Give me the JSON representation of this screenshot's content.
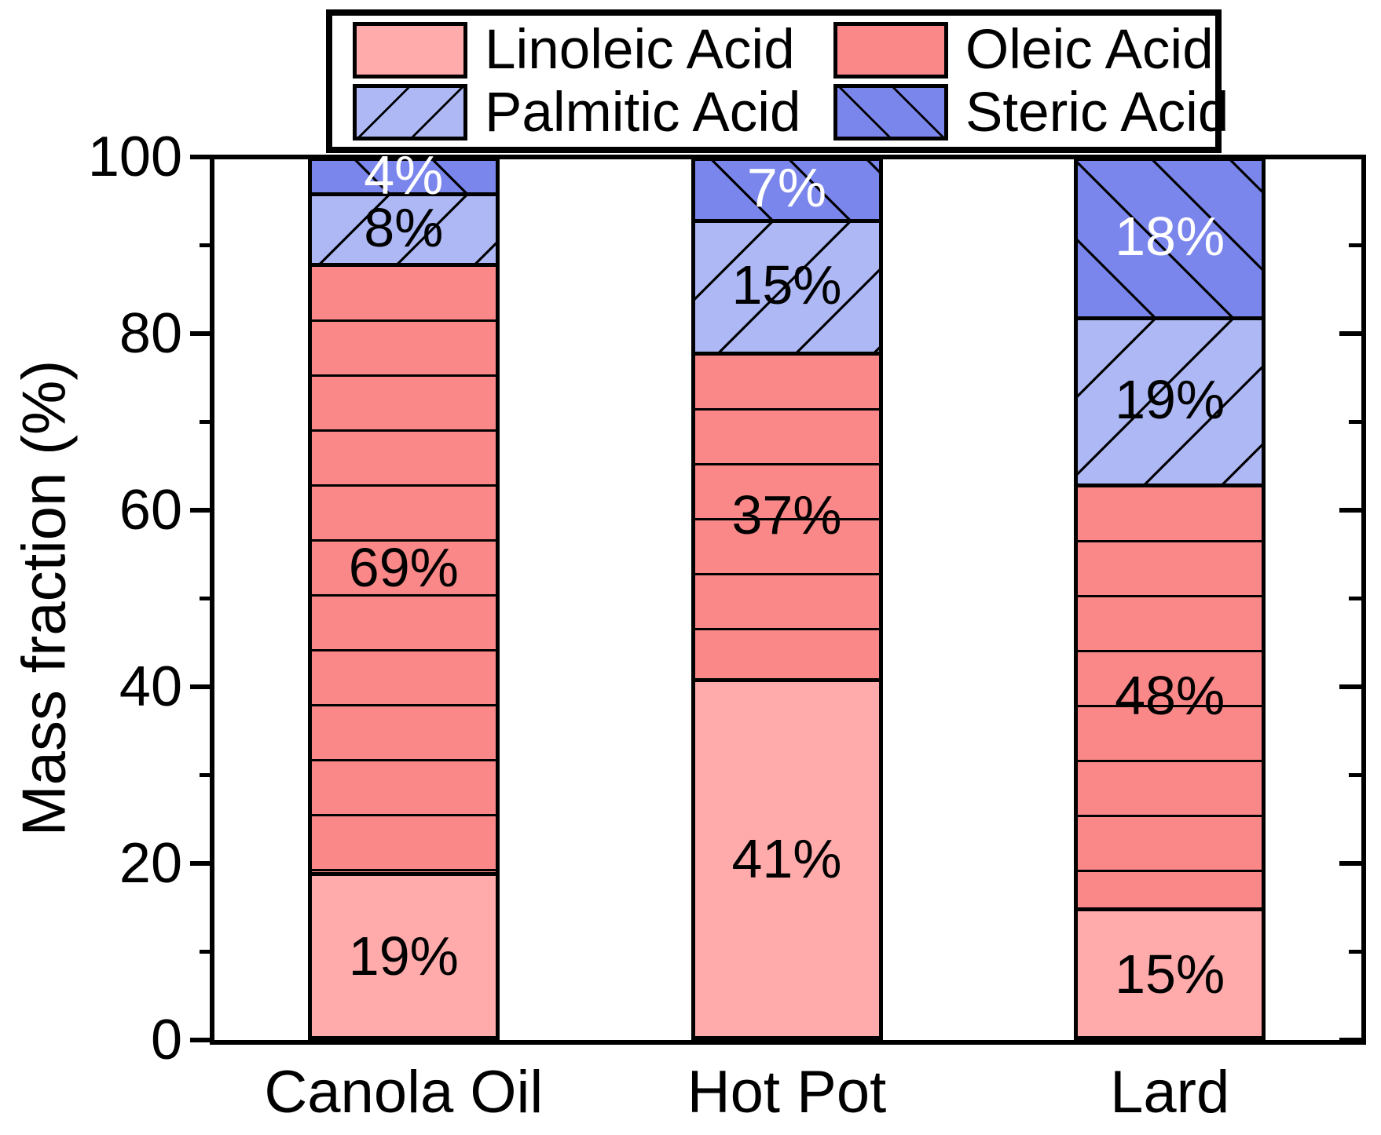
{
  "chart_data": {
    "type": "bar",
    "stacked": true,
    "title": "",
    "ylabel": "Mass fraction (%)",
    "xlabel": "",
    "ylim": [
      0,
      100
    ],
    "yticks_major": [
      0,
      20,
      40,
      60,
      80,
      100
    ],
    "yticks_minor": [
      10,
      30,
      50,
      70,
      90
    ],
    "grid": false,
    "legend_position": "top",
    "categories": [
      "Canola Oil",
      "Hot Pot",
      "Lard"
    ],
    "series": [
      {
        "name": "Linoleic Acid",
        "values": [
          19,
          41,
          15
        ],
        "color": "#FFABAB",
        "hatch": "none",
        "label_color": "#000000"
      },
      {
        "name": "Oleic Acid",
        "values": [
          69,
          37,
          48
        ],
        "color": "#FA8888",
        "hatch": "-",
        "label_color": "#000000"
      },
      {
        "name": "Palmitic Acid",
        "values": [
          8,
          15,
          19
        ],
        "color": "#AEB8F5",
        "hatch": "/",
        "label_color": "#000000"
      },
      {
        "name": "Steric Acid",
        "values": [
          4,
          7,
          18
        ],
        "color": "#7B86EC",
        "hatch": "\\",
        "label_color": "#FFFFFF"
      }
    ],
    "bar_value_labels": [
      [
        "19%",
        "69%",
        "8%",
        "4%"
      ],
      [
        "41%",
        "37%",
        "15%",
        "7%"
      ],
      [
        "15%",
        "48%",
        "19%",
        "18%"
      ]
    ],
    "hatch_color": "#000000",
    "frame_color": "#000000",
    "background_color": "#FFFFFF"
  }
}
